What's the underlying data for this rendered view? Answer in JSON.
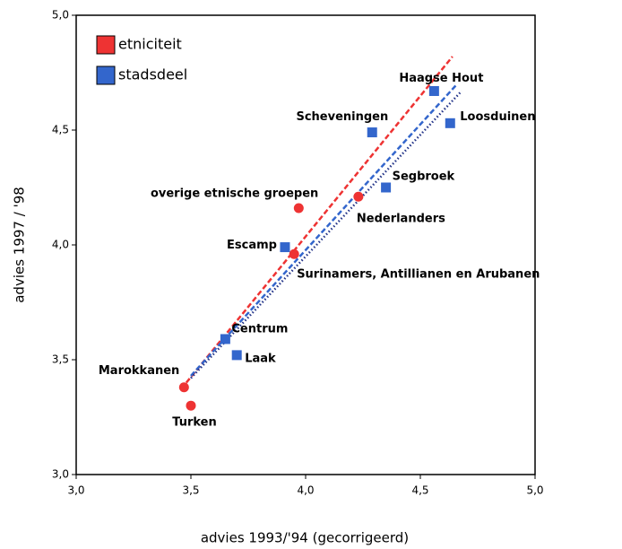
{
  "chart_data": {
    "type": "scatter",
    "xlabel": "advies 1993/'94 (gecorrigeerd)",
    "ylabel": "advies 1997 / '98",
    "xlim": [
      3.0,
      5.0
    ],
    "ylim": [
      3.0,
      5.0
    ],
    "xticks": [
      {
        "value": 3.0,
        "label": "3,0"
      },
      {
        "value": 3.5,
        "label": "3,5"
      },
      {
        "value": 4.0,
        "label": "4,0"
      },
      {
        "value": 4.5,
        "label": "4,5"
      },
      {
        "value": 5.0,
        "label": "5,0"
      }
    ],
    "yticks": [
      {
        "value": 3.0,
        "label": "3,0"
      },
      {
        "value": 3.5,
        "label": "3,5"
      },
      {
        "value": 4.0,
        "label": "4,0"
      },
      {
        "value": 4.5,
        "label": "4,5"
      },
      {
        "value": 5.0,
        "label": "5,0"
      }
    ],
    "legend": "upper left",
    "series": [
      {
        "name": "etniciteit",
        "color": "#ee3333",
        "marker": "circle",
        "labels": [
          "Marokkanen",
          "Turken",
          "overige etnische groepen",
          "Surinamers, Antillianen en Arubanen",
          "Nederlanders"
        ],
        "x": [
          3.47,
          3.5,
          3.97,
          3.95,
          4.23
        ],
        "values": [
          3.38,
          3.3,
          4.16,
          3.96,
          4.21
        ]
      },
      {
        "name": "stadsdeel",
        "color": "#3366cc",
        "marker": "square",
        "labels": [
          "Centrum",
          "Laak",
          "Escamp",
          "Scheveningen",
          "Segbroek",
          "Haagse Hout",
          "Loosduinen"
        ],
        "x": [
          3.65,
          3.7,
          3.91,
          4.29,
          4.35,
          4.56,
          4.63
        ],
        "values": [
          3.59,
          3.52,
          3.99,
          4.49,
          4.25,
          4.67,
          4.53
        ]
      }
    ],
    "trendlines": [
      {
        "color": "#ee3333",
        "style": "dashed",
        "x": [
          3.48,
          4.64
        ],
        "values": [
          3.4,
          4.82
        ]
      },
      {
        "color": "#3366cc",
        "style": "dashed",
        "x": [
          3.5,
          4.66
        ],
        "values": [
          3.43,
          4.7
        ]
      },
      {
        "color": "#223388",
        "style": "dotted",
        "x": [
          3.5,
          4.68
        ],
        "values": [
          3.42,
          4.67
        ]
      }
    ]
  }
}
